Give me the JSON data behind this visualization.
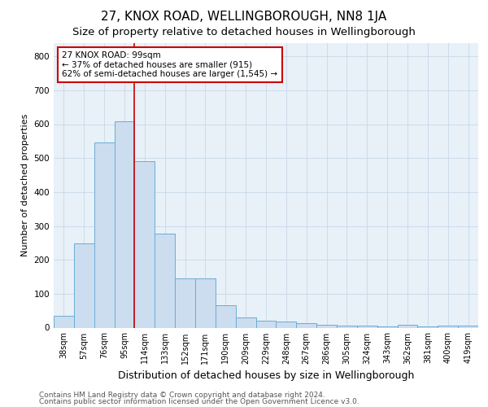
{
  "title": "27, KNOX ROAD, WELLINGBOROUGH, NN8 1JA",
  "subtitle": "Size of property relative to detached houses in Wellingborough",
  "xlabel": "Distribution of detached houses by size in Wellingborough",
  "ylabel": "Number of detached properties",
  "categories": [
    "38sqm",
    "57sqm",
    "76sqm",
    "95sqm",
    "114sqm",
    "133sqm",
    "152sqm",
    "171sqm",
    "190sqm",
    "209sqm",
    "229sqm",
    "248sqm",
    "267sqm",
    "286sqm",
    "305sqm",
    "324sqm",
    "343sqm",
    "362sqm",
    "381sqm",
    "400sqm",
    "419sqm"
  ],
  "values": [
    35,
    248,
    545,
    608,
    492,
    277,
    145,
    145,
    65,
    30,
    20,
    18,
    14,
    9,
    5,
    5,
    3,
    8,
    3,
    6,
    6
  ],
  "bar_color": "#ccddef",
  "bar_edge_color": "#6aadd5",
  "grid_color": "#c8d8e8",
  "bg_color": "#e8f0f8",
  "property_line_x": 3.5,
  "annotation_text": "27 KNOX ROAD: 99sqm\n← 37% of detached houses are smaller (915)\n62% of semi-detached houses are larger (1,545) →",
  "annotation_box_color": "#ffffff",
  "annotation_border_color": "#cc0000",
  "footer_line1": "Contains HM Land Registry data © Crown copyright and database right 2024.",
  "footer_line2": "Contains public sector information licensed under the Open Government Licence v3.0.",
  "ylim": [
    0,
    840
  ],
  "yticks": [
    0,
    100,
    200,
    300,
    400,
    500,
    600,
    700,
    800
  ],
  "title_fontsize": 11,
  "subtitle_fontsize": 9.5,
  "xlabel_fontsize": 9,
  "ylabel_fontsize": 8,
  "tick_fontsize": 7,
  "footer_fontsize": 6.5,
  "annot_fontsize": 7.5
}
